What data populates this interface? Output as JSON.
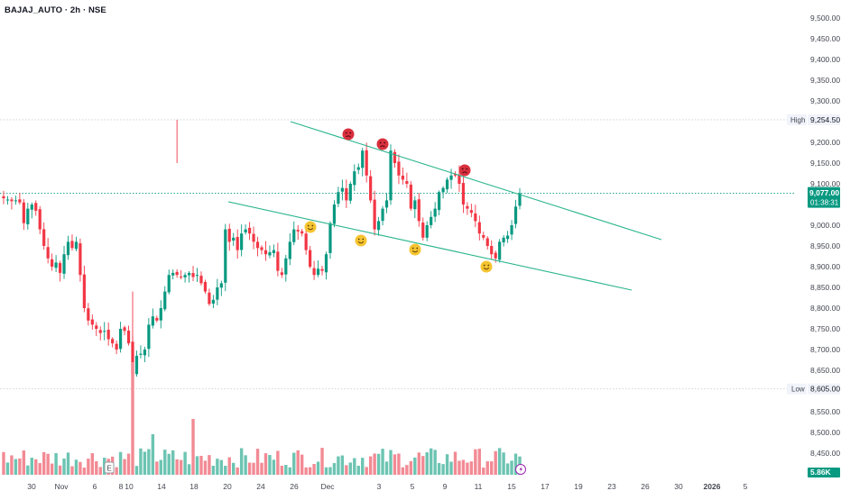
{
  "header": {
    "title": "BAJAJ_AUTO · 2h · NSE"
  },
  "colors": {
    "up": "#089981",
    "down": "#F23645",
    "trend": "#2BB58C",
    "grid": "#C9CDD6",
    "text": "#131722"
  },
  "price_axis": {
    "ticks": [
      "9,500.00",
      "9,450.00",
      "9,400.00",
      "9,350.00",
      "9,300.00",
      "9,200.00",
      "9,150.00",
      "9,100.00",
      "9,000.00",
      "8,950.00",
      "8,900.00",
      "8,850.00",
      "8,800.00",
      "8,750.00",
      "8,700.00",
      "8,650.00",
      "8,550.00",
      "8,500.00",
      "8,450.00",
      "8,400.00"
    ]
  },
  "time_axis": {
    "ticks": [
      "30",
      "Nov",
      "6",
      "8",
      "10",
      "14",
      "18",
      "20",
      "24",
      "26",
      "Dec",
      "3",
      "5",
      "9",
      "11",
      "15",
      "17",
      "19",
      "23",
      "26",
      "30",
      "2026",
      "5"
    ]
  },
  "labels": {
    "high_label": "High",
    "high_value": "9,254.50",
    "low_label": "Low",
    "low_value": "8,605.00",
    "last_price": "9,077.00",
    "countdown": "01:38:31",
    "volume": "5.86K"
  },
  "chart_data": {
    "type": "candlestick",
    "title": "BAJAJ_AUTO · 2h · NSE",
    "ylim": [
      8380,
      9540
    ],
    "high": 9254.5,
    "low": 8605,
    "last": 9077,
    "candles_close": [
      9065,
      9062,
      9058,
      9060,
      9055,
      9005,
      9040,
      9050,
      9035,
      8990,
      8950,
      8920,
      8900,
      8910,
      8885,
      8930,
      8960,
      8945,
      8960,
      8880,
      8800,
      8770,
      8760,
      8750,
      8740,
      8745,
      8725,
      8715,
      8700,
      8750,
      8745,
      8715,
      8640,
      8685,
      8690,
      8700,
      8760,
      8780,
      8770,
      8800,
      8840,
      8880,
      8885,
      8880,
      8875,
      8880,
      8885,
      8875,
      8880,
      8860,
      8840,
      8810,
      8820,
      8850,
      8860,
      8990,
      8960,
      8970,
      8940,
      8980,
      8990,
      8980,
      8960,
      8945,
      8940,
      8930,
      8935,
      8940,
      8890,
      8880,
      8920,
      8960,
      8990,
      8985,
      8980,
      8940,
      8900,
      8880,
      8895,
      8890,
      8930,
      9005,
      9050,
      9080,
      9090,
      9060,
      9100,
      9130,
      9140,
      9180,
      9120,
      9060,
      8990,
      9010,
      9040,
      9060,
      9180,
      9150,
      9120,
      9110,
      9100,
      9040,
      9060,
      9010,
      8970,
      9000,
      9020,
      9040,
      9080,
      9090,
      9110,
      9120,
      9120,
      9100,
      9050,
      9040,
      9030,
      9010,
      8980,
      8970,
      8950,
      8930,
      8920,
      8960,
      8970,
      8975,
      9000,
      9045,
      9077
    ],
    "trendlines": [
      {
        "name": "upper",
        "points": [
          [
            30,
            9270
          ],
          [
            133,
            8995
          ]
        ]
      },
      {
        "name": "lower",
        "points": [
          [
            24,
            9050
          ],
          [
            127,
            8850
          ]
        ]
      }
    ],
    "markers": [
      {
        "type": "sad",
        "index": 43,
        "price": 9220
      },
      {
        "type": "sad",
        "index": 49,
        "price": 9195
      },
      {
        "type": "sad",
        "index": 60,
        "price": 9130
      },
      {
        "type": "happy",
        "index": 26,
        "price": 8995
      },
      {
        "type": "happy",
        "index": 35,
        "price": 8972
      },
      {
        "type": "happy",
        "index": 59,
        "price": 8955
      },
      {
        "type": "happy",
        "index": 68,
        "price": 8910
      }
    ],
    "xlabel": "",
    "ylabel": ""
  }
}
